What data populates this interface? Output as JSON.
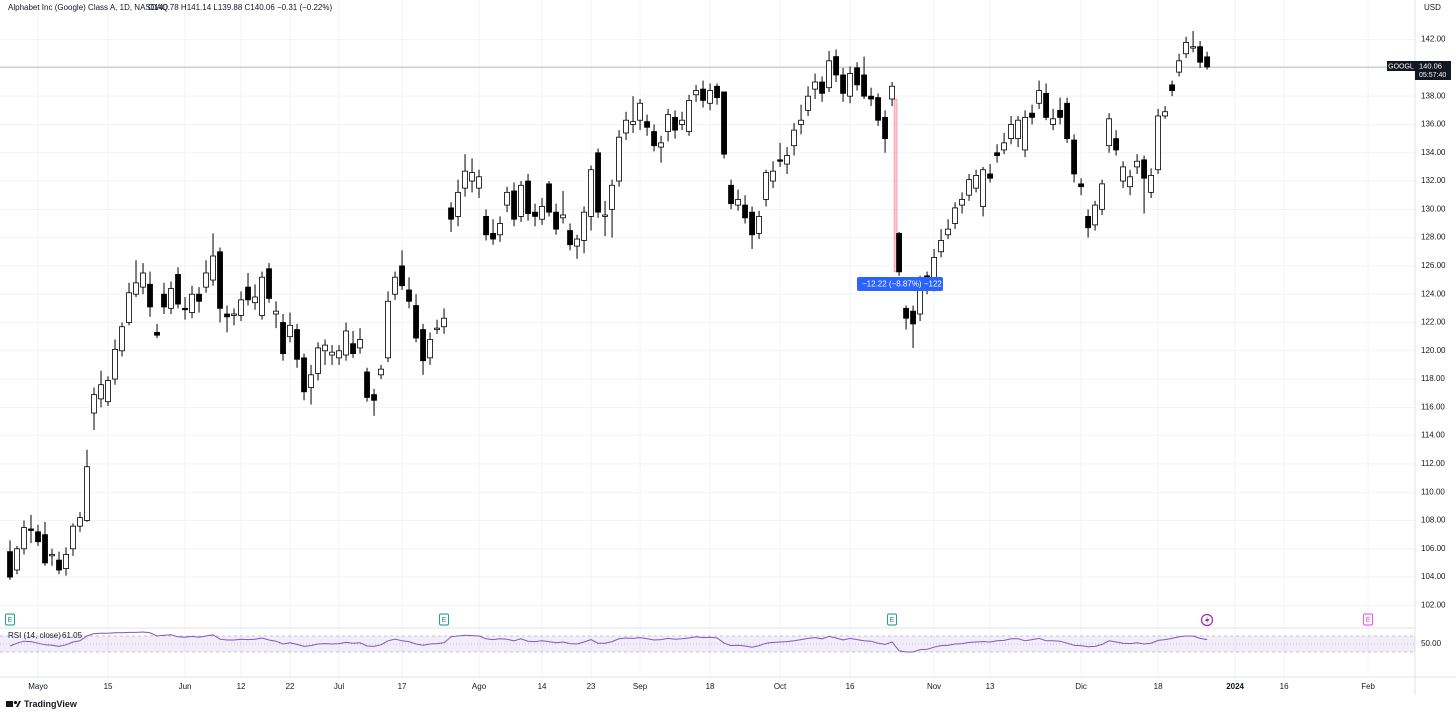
{
  "chart_data": {
    "type": "candlestick",
    "title": "Alphabet Inc (Google) Class A, 1D, NASDAQ",
    "legend_text": "O140.78 H141.14 L139.88 C140.06 −0.31 (−0.22%)",
    "currency": "USD",
    "symbol": "GOOGL",
    "last_price": 140.06,
    "countdown": "05:57:40",
    "up_color": "#ffffff",
    "down_color": "#000000",
    "grid": true,
    "xlim": [
      -1.43,
      200.7
    ],
    "xticks": [
      {
        "value": 4,
        "label": "Mayo"
      },
      {
        "value": 14,
        "label": "15"
      },
      {
        "value": 25,
        "label": "Jun"
      },
      {
        "value": 33,
        "label": "12"
      },
      {
        "value": 40,
        "label": "22"
      },
      {
        "value": 47,
        "label": "Jul"
      },
      {
        "value": 56,
        "label": "17"
      },
      {
        "value": 67,
        "label": "Ago"
      },
      {
        "value": 76,
        "label": "14"
      },
      {
        "value": 83,
        "label": "23"
      },
      {
        "value": 90,
        "label": "Sep"
      },
      {
        "value": 100,
        "label": "18"
      },
      {
        "value": 110,
        "label": "Oct"
      },
      {
        "value": 120,
        "label": "16"
      },
      {
        "value": 132,
        "label": "Nov"
      },
      {
        "value": 140,
        "label": "13"
      },
      {
        "value": 153,
        "label": "Dic"
      },
      {
        "value": 164,
        "label": "18"
      },
      {
        "value": 175,
        "label": "2024"
      },
      {
        "value": 182,
        "label": "16"
      },
      {
        "value": 194,
        "label": "Feb"
      }
    ],
    "ylim": [
      100.4,
      144.8
    ],
    "yticks": [
      {
        "value": 102,
        "label": "102.00"
      },
      {
        "value": 104,
        "label": "104.00"
      },
      {
        "value": 106,
        "label": "106.00"
      },
      {
        "value": 108,
        "label": "108.00"
      },
      {
        "value": 110,
        "label": "110.00"
      },
      {
        "value": 112,
        "label": "112.00"
      },
      {
        "value": 114,
        "label": "114.00"
      },
      {
        "value": 116,
        "label": "116.00"
      },
      {
        "value": 118,
        "label": "118.00"
      },
      {
        "value": 120,
        "label": "120.00"
      },
      {
        "value": 122,
        "label": "122.00"
      },
      {
        "value": 124,
        "label": "124.00"
      },
      {
        "value": 126,
        "label": "126.00"
      },
      {
        "value": 128,
        "label": "128.00"
      },
      {
        "value": 130,
        "label": "130.00"
      },
      {
        "value": 132,
        "label": "132.00"
      },
      {
        "value": 134,
        "label": "134.00"
      },
      {
        "value": 136,
        "label": "136.00"
      },
      {
        "value": 138,
        "label": "138.00"
      },
      {
        "value": 140,
        "label": "140.00"
      },
      {
        "value": 142,
        "label": "142.00"
      }
    ],
    "ohlc": [
      [
        105.8,
        106.6,
        103.8,
        104.0
      ],
      [
        104.5,
        106.2,
        104.2,
        106.0
      ],
      [
        106.0,
        108.0,
        105.6,
        107.5
      ],
      [
        107.4,
        108.4,
        106.4,
        107.3
      ],
      [
        107.2,
        107.7,
        106.2,
        106.5
      ],
      [
        107.0,
        107.9,
        104.8,
        105.0
      ],
      [
        105.5,
        106.0,
        104.8,
        105.6
      ],
      [
        105.2,
        105.8,
        104.2,
        104.5
      ],
      [
        104.6,
        106.1,
        104.1,
        105.6
      ],
      [
        106.0,
        107.8,
        105.5,
        107.6
      ],
      [
        107.6,
        108.6,
        107.2,
        108.2
      ],
      [
        108.0,
        113.0,
        107.9,
        111.8
      ],
      [
        115.6,
        117.4,
        114.4,
        116.9
      ],
      [
        116.6,
        118.6,
        116.0,
        117.6
      ],
      [
        116.4,
        118.2,
        116.1,
        117.9
      ],
      [
        118.0,
        120.8,
        117.6,
        120.1
      ],
      [
        120.0,
        122.0,
        119.6,
        121.7
      ],
      [
        122.0,
        124.8,
        121.8,
        124.1
      ],
      [
        124.0,
        126.4,
        123.8,
        124.8
      ],
      [
        124.5,
        126.2,
        124.0,
        125.5
      ],
      [
        124.7,
        125.6,
        122.4,
        123.1
      ],
      [
        121.3,
        121.9,
        120.9,
        121.1
      ],
      [
        124.0,
        124.8,
        122.6,
        123.1
      ],
      [
        123.0,
        124.9,
        122.6,
        124.4
      ],
      [
        125.4,
        125.9,
        123.0,
        123.3
      ],
      [
        123.0,
        123.8,
        122.2,
        122.9
      ],
      [
        122.7,
        124.6,
        122.3,
        124.0
      ],
      [
        124.0,
        124.5,
        122.7,
        123.5
      ],
      [
        124.5,
        126.4,
        124.1,
        125.5
      ],
      [
        125.0,
        128.3,
        124.6,
        126.7
      ],
      [
        127.0,
        127.3,
        122.0,
        123.0
      ],
      [
        122.6,
        123.2,
        121.3,
        122.4
      ],
      [
        122.5,
        123.0,
        121.8,
        122.6
      ],
      [
        122.5,
        124.2,
        122.1,
        123.6
      ],
      [
        124.5,
        125.5,
        123.2,
        123.6
      ],
      [
        123.4,
        124.7,
        122.9,
        123.8
      ],
      [
        122.5,
        125.6,
        122.2,
        125.2
      ],
      [
        125.8,
        126.2,
        123.4,
        123.7
      ],
      [
        122.6,
        123.5,
        121.6,
        122.8
      ],
      [
        122.0,
        122.6,
        119.3,
        119.8
      ],
      [
        121.0,
        122.7,
        120.6,
        121.8
      ],
      [
        121.5,
        121.9,
        118.8,
        119.4
      ],
      [
        119.5,
        119.8,
        116.5,
        117.1
      ],
      [
        117.4,
        119.0,
        116.2,
        118.3
      ],
      [
        118.4,
        120.6,
        117.9,
        120.2
      ],
      [
        120.0,
        120.8,
        119.0,
        120.4
      ],
      [
        119.7,
        120.4,
        119.0,
        119.9
      ],
      [
        119.5,
        120.4,
        119.0,
        120.0
      ],
      [
        119.7,
        122.0,
        119.3,
        121.4
      ],
      [
        120.5,
        121.4,
        119.5,
        119.8
      ],
      [
        120.2,
        121.6,
        119.8,
        120.8
      ],
      [
        118.5,
        118.8,
        116.4,
        116.7
      ],
      [
        116.9,
        117.3,
        115.4,
        116.5
      ],
      [
        118.3,
        119.0,
        118.0,
        118.7
      ],
      [
        119.5,
        124.2,
        119.2,
        123.5
      ],
      [
        124.0,
        125.6,
        123.6,
        125.2
      ],
      [
        126.0,
        127.1,
        124.3,
        124.6
      ],
      [
        124.3,
        125.2,
        123.0,
        123.5
      ],
      [
        123.2,
        124.0,
        120.6,
        120.9
      ],
      [
        121.5,
        121.9,
        118.3,
        119.3
      ],
      [
        119.5,
        121.3,
        119.0,
        120.8
      ],
      [
        121.5,
        122.2,
        121.2,
        121.6
      ],
      [
        121.7,
        123.0,
        121.2,
        122.3
      ],
      [
        130.1,
        130.5,
        128.4,
        129.3
      ],
      [
        129.5,
        132.1,
        128.8,
        131.2
      ],
      [
        131.5,
        133.9,
        130.9,
        132.7
      ],
      [
        132.0,
        133.6,
        131.2,
        132.6
      ],
      [
        131.5,
        132.8,
        130.8,
        132.3
      ],
      [
        129.5,
        130.0,
        127.8,
        128.2
      ],
      [
        128.3,
        129.3,
        127.5,
        127.9
      ],
      [
        128.2,
        129.5,
        127.7,
        129.0
      ],
      [
        130.3,
        131.6,
        129.8,
        131.2
      ],
      [
        131.3,
        131.9,
        128.8,
        129.3
      ],
      [
        129.5,
        132.0,
        129.1,
        131.7
      ],
      [
        132.0,
        132.5,
        129.2,
        129.7
      ],
      [
        129.8,
        130.4,
        128.8,
        129.5
      ],
      [
        129.3,
        130.8,
        128.9,
        130.2
      ],
      [
        131.8,
        132.0,
        129.5,
        129.8
      ],
      [
        129.8,
        130.4,
        128.2,
        128.6
      ],
      [
        129.4,
        131.3,
        129.0,
        129.6
      ],
      [
        128.5,
        129.0,
        127.1,
        127.5
      ],
      [
        127.4,
        128.2,
        126.5,
        127.9
      ],
      [
        127.8,
        130.2,
        126.9,
        129.8
      ],
      [
        129.5,
        133.1,
        128.5,
        132.8
      ],
      [
        134.0,
        134.3,
        129.4,
        129.8
      ],
      [
        129.5,
        130.6,
        128.1,
        129.6
      ],
      [
        130.0,
        132.1,
        128.0,
        131.7
      ],
      [
        132.0,
        135.6,
        131.6,
        135.1
      ],
      [
        135.4,
        136.9,
        134.9,
        136.3
      ],
      [
        136.0,
        138.0,
        135.4,
        136.2
      ],
      [
        136.3,
        137.8,
        135.6,
        137.5
      ],
      [
        136.2,
        136.7,
        135.2,
        135.8
      ],
      [
        135.5,
        136.0,
        134.1,
        134.5
      ],
      [
        134.4,
        135.2,
        133.3,
        134.7
      ],
      [
        135.5,
        137.1,
        134.8,
        136.7
      ],
      [
        136.5,
        137.0,
        135.0,
        135.6
      ],
      [
        136.0,
        136.9,
        135.6,
        136.3
      ],
      [
        135.5,
        138.1,
        135.2,
        137.7
      ],
      [
        138.1,
        138.8,
        137.6,
        138.4
      ],
      [
        138.5,
        139.1,
        137.2,
        137.7
      ],
      [
        137.5,
        138.9,
        137.0,
        138.4
      ],
      [
        138.7,
        138.9,
        137.4,
        137.9
      ],
      [
        138.3,
        138.3,
        133.6,
        133.9
      ],
      [
        131.7,
        132.1,
        130.0,
        130.4
      ],
      [
        130.3,
        131.4,
        129.9,
        130.7
      ],
      [
        130.3,
        131.0,
        129.0,
        129.4
      ],
      [
        129.8,
        130.2,
        127.2,
        128.2
      ],
      [
        128.3,
        129.9,
        127.9,
        129.5
      ],
      [
        130.7,
        132.8,
        130.2,
        132.6
      ],
      [
        132.0,
        133.4,
        131.5,
        132.7
      ],
      [
        133.5,
        134.7,
        133.0,
        133.4
      ],
      [
        133.2,
        134.4,
        132.5,
        133.8
      ],
      [
        134.5,
        136.1,
        133.8,
        135.6
      ],
      [
        136.0,
        137.4,
        135.3,
        136.3
      ],
      [
        137.0,
        138.7,
        136.6,
        138.0
      ],
      [
        138.5,
        139.6,
        137.8,
        139.0
      ],
      [
        139.0,
        139.4,
        137.6,
        138.2
      ],
      [
        138.6,
        141.2,
        138.3,
        140.5
      ],
      [
        140.8,
        141.3,
        139.0,
        139.5
      ],
      [
        139.5,
        140.0,
        137.6,
        138.2
      ],
      [
        138.0,
        140.1,
        137.5,
        139.6
      ],
      [
        140.0,
        140.4,
        138.4,
        138.8
      ],
      [
        139.5,
        140.8,
        137.8,
        138.0
      ],
      [
        138.0,
        138.6,
        137.3,
        137.8
      ],
      [
        137.9,
        138.2,
        135.9,
        136.3
      ],
      [
        136.5,
        137.0,
        134.0,
        135.0
      ],
      [
        137.8,
        139.0,
        137.3,
        138.7
      ],
      [
        128.3,
        128.4,
        125.3,
        125.58
      ],
      [
        123.0,
        123.2,
        121.5,
        122.3
      ],
      [
        122.8,
        123.2,
        120.2,
        121.9
      ],
      [
        122.6,
        125.3,
        122.1,
        124.9
      ],
      [
        125.3,
        125.6,
        124.0,
        124.4
      ],
      [
        124.5,
        127.2,
        124.2,
        126.6
      ],
      [
        127.0,
        128.6,
        126.6,
        127.8
      ],
      [
        128.2,
        129.3,
        127.9,
        128.6
      ],
      [
        129.0,
        130.5,
        128.6,
        130.1
      ],
      [
        130.3,
        131.2,
        129.7,
        130.7
      ],
      [
        131.0,
        132.5,
        130.6,
        132.1
      ],
      [
        131.5,
        132.8,
        131.2,
        132.4
      ],
      [
        130.2,
        133.0,
        129.5,
        132.8
      ],
      [
        132.5,
        133.2,
        131.9,
        132.2
      ],
      [
        134.0,
        134.6,
        133.3,
        133.8
      ],
      [
        134.2,
        135.4,
        133.9,
        134.7
      ],
      [
        135.0,
        136.6,
        134.6,
        136.0
      ],
      [
        135.0,
        136.6,
        134.4,
        136.3
      ],
      [
        134.2,
        137.0,
        133.7,
        136.5
      ],
      [
        136.8,
        137.4,
        136.0,
        136.5
      ],
      [
        137.5,
        139.1,
        137.1,
        138.4
      ],
      [
        138.2,
        138.9,
        136.3,
        136.5
      ],
      [
        136.0,
        137.1,
        135.6,
        136.4
      ],
      [
        137.0,
        137.9,
        136.0,
        136.5
      ],
      [
        137.5,
        137.9,
        134.7,
        135.0
      ],
      [
        134.9,
        135.3,
        131.9,
        132.5
      ],
      [
        131.8,
        132.2,
        131.0,
        131.6
      ],
      [
        129.5,
        130.0,
        128.0,
        128.7
      ],
      [
        128.9,
        130.6,
        128.5,
        130.3
      ],
      [
        130.0,
        132.1,
        129.6,
        131.8
      ],
      [
        134.5,
        136.8,
        134.0,
        136.4
      ],
      [
        135.0,
        135.6,
        133.8,
        134.2
      ],
      [
        132.0,
        133.4,
        131.5,
        133.0
      ],
      [
        131.6,
        132.8,
        131.0,
        132.3
      ],
      [
        133.0,
        133.9,
        132.5,
        133.4
      ],
      [
        133.5,
        133.8,
        129.7,
        132.2
      ],
      [
        131.2,
        132.9,
        130.8,
        132.4
      ],
      [
        132.8,
        137.1,
        132.5,
        136.6
      ],
      [
        136.6,
        137.3,
        136.4,
        136.9
      ],
      [
        138.8,
        139.1,
        138.0,
        138.4
      ],
      [
        139.7,
        141.0,
        139.4,
        140.5
      ],
      [
        141.0,
        142.2,
        140.7,
        141.8
      ],
      [
        141.4,
        142.6,
        141.1,
        141.5
      ],
      [
        141.5,
        141.9,
        140.0,
        140.4
      ],
      [
        140.78,
        141.14,
        139.88,
        140.06
      ]
    ],
    "measure": {
      "label": "−12.22 (−8.87%) −122",
      "start": 137.8,
      "end": 125.58
    },
    "events": [
      {
        "label": "E",
        "x": 0,
        "color": "#089981"
      },
      {
        "label": "E",
        "x": 62,
        "color": "#089981"
      },
      {
        "label": "E",
        "x": 126,
        "color": "#089981"
      },
      {
        "label": "E",
        "x": 194,
        "color": "#e040fb"
      }
    ],
    "rsi": {
      "label": "RSI (14, close)",
      "color": "#7e57c2",
      "ylim": [
        20,
        85
      ],
      "bands": [
        70,
        30
      ],
      "ticks": [
        {
          "value": 50,
          "label": "50.00"
        }
      ],
      "values": [
        45,
        52,
        57,
        56,
        52,
        48,
        47,
        44,
        48,
        55,
        58,
        70,
        76,
        77,
        77,
        78,
        78,
        79,
        79,
        80,
        78,
        70,
        72,
        73,
        68,
        67,
        69,
        67,
        70,
        73,
        62,
        60,
        60,
        62,
        61,
        62,
        65,
        60,
        57,
        50,
        53,
        49,
        44,
        46,
        50,
        51,
        50,
        51,
        54,
        52,
        53,
        45,
        44,
        48,
        58,
        62,
        58,
        56,
        50,
        47,
        50,
        51,
        53,
        68,
        70,
        72,
        71,
        70,
        63,
        61,
        63,
        62,
        58,
        63,
        57,
        56,
        58,
        56,
        53,
        55,
        51,
        50,
        55,
        61,
        52,
        52,
        56,
        63,
        65,
        64,
        66,
        63,
        60,
        61,
        64,
        62,
        63,
        65,
        68,
        66,
        67,
        65,
        52,
        46,
        47,
        45,
        42,
        46,
        52,
        54,
        55,
        56,
        58,
        61,
        64,
        66,
        63,
        69,
        65,
        60,
        64,
        61,
        58,
        57,
        52,
        49,
        55,
        33,
        30,
        30,
        36,
        37,
        42,
        46,
        47,
        50,
        51,
        54,
        55,
        56,
        55,
        58,
        59,
        63,
        63,
        58,
        61,
        64,
        58,
        58,
        57,
        52,
        47,
        46,
        43,
        44,
        49,
        58,
        55,
        52,
        51,
        53,
        50,
        52,
        59,
        61,
        64,
        68,
        70,
        70,
        64,
        61.05
      ]
    },
    "brand": "TradingView"
  }
}
